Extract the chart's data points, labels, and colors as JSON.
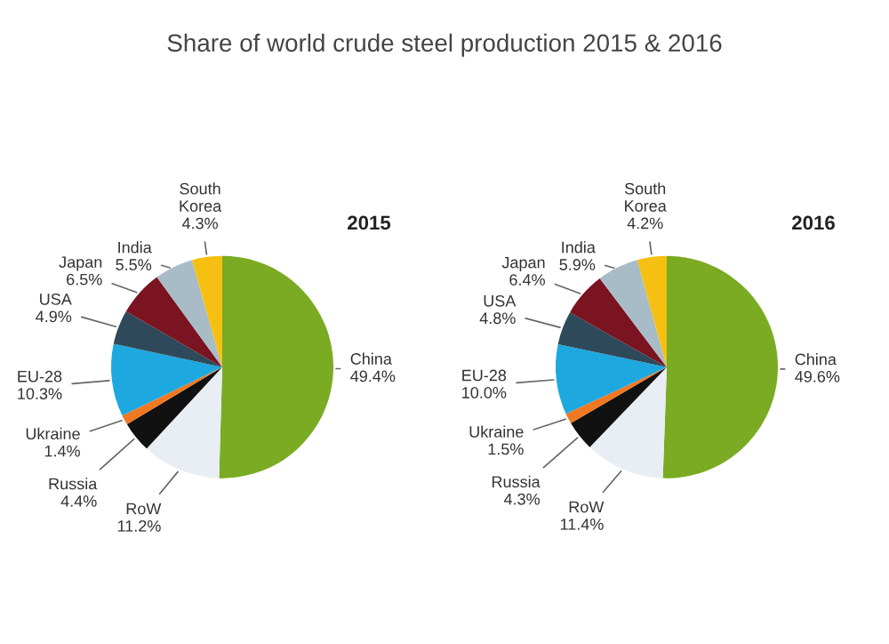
{
  "chart_data": [
    {
      "type": "pie",
      "title": "Share of world crude steel production 2015 & 2016",
      "subtitle": "2015",
      "categories": [
        "China",
        "RoW",
        "Russia",
        "Ukraine",
        "EU-28",
        "USA",
        "Japan",
        "India",
        "South Korea"
      ],
      "values": [
        49.4,
        11.2,
        4.4,
        1.4,
        10.3,
        4.9,
        6.5,
        5.5,
        4.3
      ],
      "value_labels": [
        "49.4%",
        "11.2%",
        "4.4%",
        "1.4%",
        "10.3%",
        "4.9%",
        "6.5%",
        "5.5%",
        "4.3%"
      ],
      "colors": [
        "#7aab22",
        "#e8eef4",
        "#111111",
        "#f07820",
        "#1ea8e0",
        "#2e4a5a",
        "#7a1420",
        "#a8bcc8",
        "#f5c011"
      ]
    },
    {
      "type": "pie",
      "subtitle": "2016",
      "categories": [
        "China",
        "RoW",
        "Russia",
        "Ukraine",
        "EU-28",
        "USA",
        "Japan",
        "India",
        "South Korea"
      ],
      "values": [
        49.6,
        11.4,
        4.3,
        1.5,
        10.0,
        4.8,
        6.4,
        5.9,
        4.2
      ],
      "value_labels": [
        "49.6%",
        "11.4%",
        "4.3%",
        "1.5%",
        "10.0%",
        "4.8%",
        "6.4%",
        "5.9%",
        "4.2%"
      ],
      "colors": [
        "#7aab22",
        "#e8eef4",
        "#111111",
        "#f07820",
        "#1ea8e0",
        "#2e4a5a",
        "#7a1420",
        "#a8bcc8",
        "#f5c011"
      ]
    }
  ]
}
